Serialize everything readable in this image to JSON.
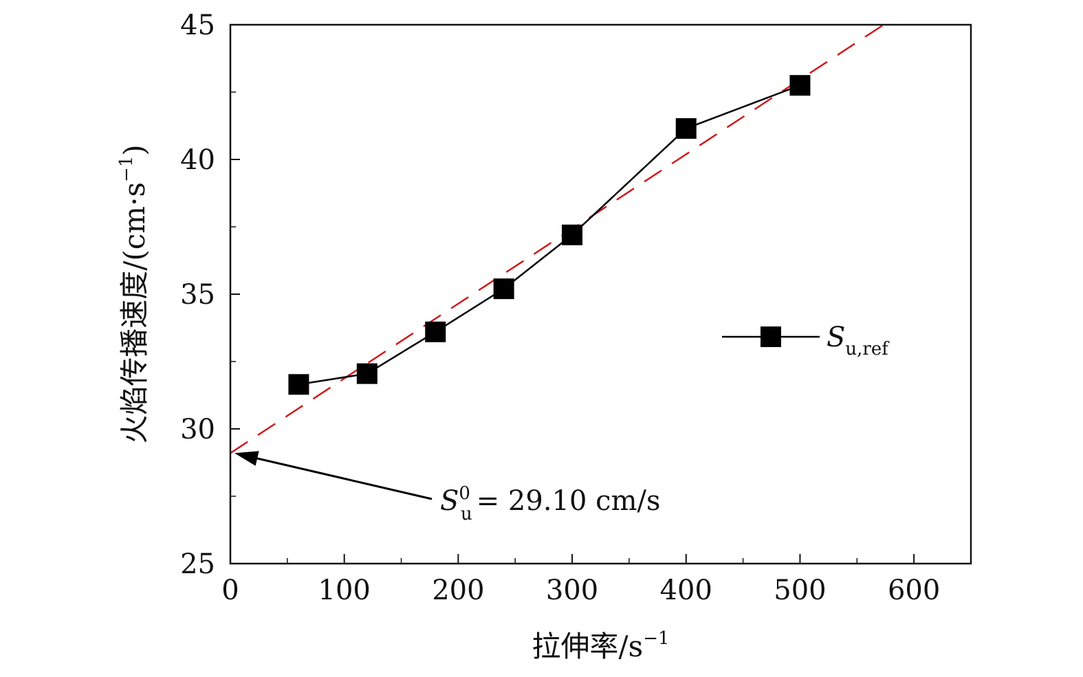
{
  "chart_data": {
    "type": "line",
    "title": "",
    "xlabel": "拉伸率/s",
    "xlabel_sup": "−1",
    "ylabel": "火焰传播速度/(cm·s",
    "ylabel_sup": "−1",
    "ylabel_close": ")",
    "xlim": [
      0,
      650
    ],
    "ylim": [
      25,
      45
    ],
    "x_ticks": [
      0,
      100,
      200,
      300,
      400,
      500,
      600
    ],
    "y_ticks": [
      25,
      30,
      35,
      40,
      45
    ],
    "x_minor_step": 50,
    "y_minor_step": 2.5,
    "grid": false,
    "legend_position": "right",
    "series": [
      {
        "name_main": "S",
        "name_sub": "u,ref",
        "marker": "square",
        "color": "#000000",
        "x": [
          60,
          120,
          180,
          240,
          300,
          400,
          500
        ],
        "y": [
          31.65,
          32.05,
          33.6,
          35.2,
          37.2,
          41.15,
          42.75
        ]
      }
    ],
    "fit_line": {
      "color": "#d11a1a",
      "style": "dashed",
      "intercept": 29.1,
      "slope": 0.02773
    },
    "annotation": {
      "label_main": "S",
      "label_sup": "0",
      "label_sub": "u",
      "label_rest": "= 29.10 cm/s",
      "point": [
        0,
        29.1
      ],
      "text_at": [
        175,
        27.5
      ]
    }
  }
}
